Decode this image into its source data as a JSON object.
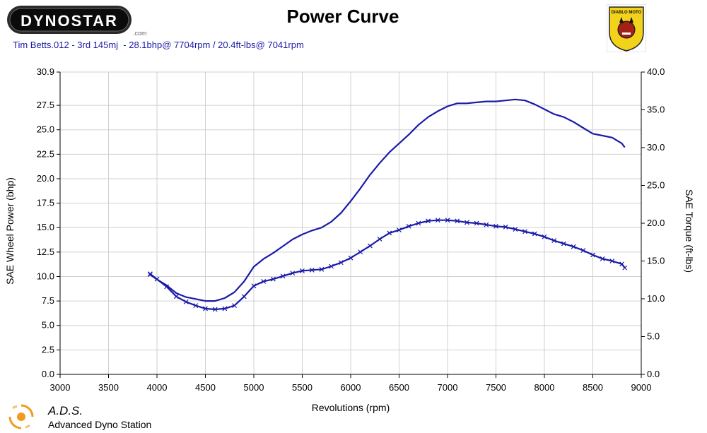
{
  "header": {
    "brand": "DYNOSTAR",
    "brand_suffix": ".com",
    "title": "Power Curve",
    "subtitle": "Tim Betts.012 - 3rd 145mj  - 28.1bhp@ 7704rpm / 20.4ft-lbs@ 7041rpm",
    "badge_text": "DIABLO MOTO"
  },
  "footer": {
    "brand": "A.D.S.",
    "tagline": "Advanced Dyno Station"
  },
  "colors": {
    "series": "#1a1aa8",
    "grid": "#d0d0d0",
    "badge_bg": "#f2d21a"
  },
  "chart_data": {
    "type": "line",
    "title": "Power Curve",
    "xlabel": "Revolutions (rpm)",
    "ylabel": "SAE Wheel Power (bhp)",
    "y2label": "SAE Torque (ft-lbs)",
    "xlim": [
      3000,
      9000
    ],
    "ylim": [
      0,
      30.9
    ],
    "y2lim": [
      0,
      40
    ],
    "grid": true,
    "x_ticks": [
      "3000",
      "3500",
      "4000",
      "4500",
      "5000",
      "5500",
      "6000",
      "6500",
      "7000",
      "7500",
      "8000",
      "8500",
      "9000"
    ],
    "y_ticks": [
      "0.0",
      "2.5",
      "5.0",
      "7.5",
      "10.0",
      "12.5",
      "15.0",
      "17.5",
      "20.0",
      "22.5",
      "25.0",
      "27.5",
      "30.9"
    ],
    "y2_ticks": [
      "0.0",
      "5.0",
      "10.0",
      "15.0",
      "20.0",
      "25.0",
      "30.0",
      "35.0",
      "40.0"
    ],
    "series": [
      {
        "axis": "left",
        "x": [
          3930,
          4000,
          4100,
          4200,
          4300,
          4400,
          4500,
          4600,
          4700,
          4800,
          4900,
          5000,
          5100,
          5200,
          5300,
          5400,
          5500,
          5600,
          5700,
          5800,
          5900,
          6000,
          6100,
          6200,
          6300,
          6400,
          6500,
          6600,
          6700,
          6800,
          6900,
          7000,
          7100,
          7200,
          7300,
          7400,
          7500,
          7600,
          7700,
          7800,
          7900,
          8000,
          8100,
          8200,
          8300,
          8400,
          8500,
          8600,
          8700,
          8800,
          8830
        ],
        "y": [
          10.2,
          9.7,
          9.1,
          8.3,
          7.9,
          7.7,
          7.5,
          7.5,
          7.8,
          8.4,
          9.5,
          11.0,
          11.8,
          12.4,
          13.1,
          13.8,
          14.3,
          14.7,
          15.0,
          15.6,
          16.5,
          17.7,
          19.0,
          20.4,
          21.6,
          22.7,
          23.6,
          24.5,
          25.5,
          26.3,
          26.9,
          27.4,
          27.7,
          27.7,
          27.8,
          27.9,
          27.9,
          28.0,
          28.1,
          28.0,
          27.6,
          27.1,
          26.6,
          26.3,
          25.8,
          25.2,
          24.6,
          24.4,
          24.2,
          23.6,
          23.2
        ]
      },
      {
        "axis": "right",
        "x": [
          3930,
          4000,
          4100,
          4200,
          4300,
          4400,
          4500,
          4600,
          4700,
          4800,
          4900,
          5000,
          5100,
          5200,
          5300,
          5400,
          5500,
          5600,
          5700,
          5800,
          5900,
          6000,
          6100,
          6200,
          6300,
          6400,
          6500,
          6600,
          6700,
          6800,
          6900,
          7000,
          7100,
          7200,
          7300,
          7400,
          7500,
          7600,
          7700,
          7800,
          7900,
          8000,
          8100,
          8200,
          8300,
          8400,
          8500,
          8600,
          8700,
          8800,
          8830
        ],
        "y": [
          13.3,
          12.6,
          11.6,
          10.3,
          9.6,
          9.1,
          8.7,
          8.6,
          8.7,
          9.1,
          10.3,
          11.7,
          12.3,
          12.6,
          13.0,
          13.4,
          13.7,
          13.8,
          13.9,
          14.3,
          14.8,
          15.4,
          16.2,
          17.0,
          17.9,
          18.7,
          19.1,
          19.6,
          20.0,
          20.3,
          20.4,
          20.4,
          20.3,
          20.1,
          20.0,
          19.8,
          19.6,
          19.5,
          19.2,
          18.9,
          18.6,
          18.2,
          17.7,
          17.3,
          16.9,
          16.4,
          15.8,
          15.3,
          15.0,
          14.6,
          14.1
        ]
      }
    ]
  }
}
